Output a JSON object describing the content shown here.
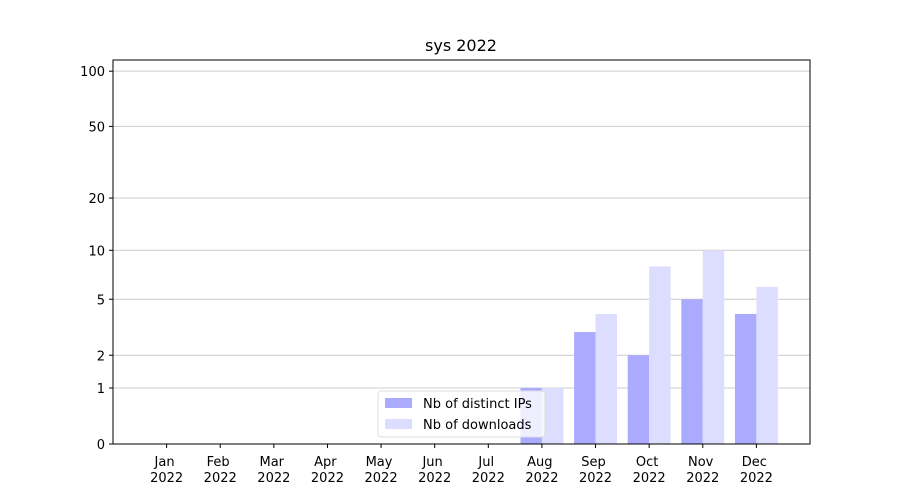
{
  "chart_data": {
    "type": "bar",
    "title": "sys 2022",
    "categories": [
      "Jan 2022",
      "Feb 2022",
      "Mar 2022",
      "Apr 2022",
      "May 2022",
      "Jun 2022",
      "Jul 2022",
      "Aug 2022",
      "Sep 2022",
      "Oct 2022",
      "Nov 2022",
      "Dec 2022"
    ],
    "series": [
      {
        "name": "Nb of distinct IPs",
        "color": "#aaaaff",
        "values": [
          0,
          0,
          0,
          0,
          0,
          0,
          0,
          1,
          3,
          2,
          5,
          4
        ]
      },
      {
        "name": "Nb of downloads",
        "color": "#ddddff",
        "values": [
          0,
          0,
          0,
          0,
          0,
          0,
          0,
          1,
          4,
          8,
          10,
          6
        ]
      }
    ],
    "yscale": "log1p",
    "ylim": [
      0,
      115
    ],
    "yticks": [
      0,
      1,
      2,
      5,
      10,
      20,
      50,
      100
    ],
    "grid": true,
    "legend": "lower center"
  }
}
